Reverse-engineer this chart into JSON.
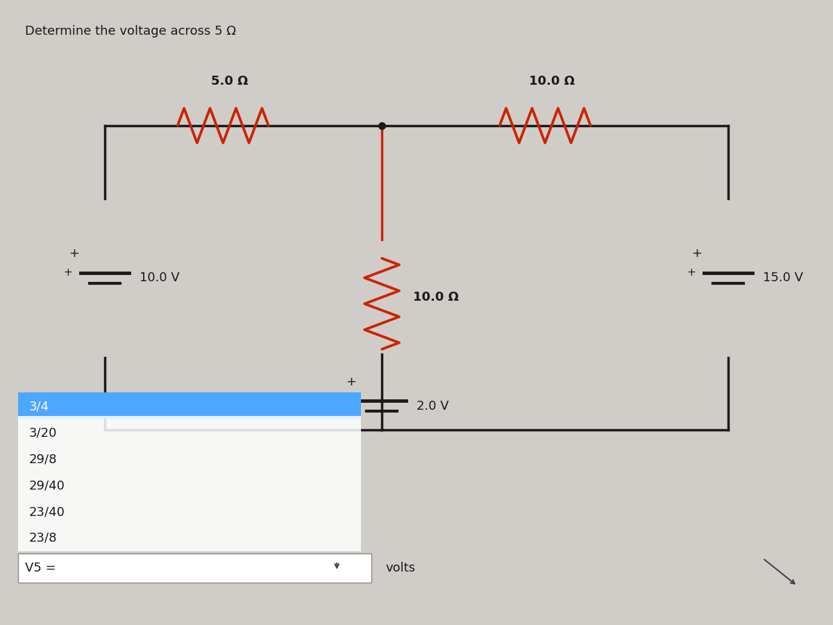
{
  "title": "Determine the voltage across 5 Ω",
  "bg_color": "#d0cdc8",
  "circuit_color": "#1a1a1a",
  "resistor_color": "#cc2200",
  "resistor_top_color": "#cc2200",
  "resistor_label_5": "5.0 Ω",
  "resistor_label_10h": "10.0 Ω",
  "resistor_label_10v": "10.0 Ω",
  "voltage_left": "10.0 V",
  "voltage_right": "15.0 V",
  "voltage_bottom": "2.0 V",
  "dropdown_options": [
    "3/4",
    "3/20",
    "29/8",
    "29/40",
    "23/40",
    "23/8"
  ],
  "dropdown_highlight": "#4da6ff",
  "dropdown_bg": "#e8e8e8",
  "v5_label": "V5 =",
  "volts_label": "volts",
  "font_color": "#1a1a1a"
}
